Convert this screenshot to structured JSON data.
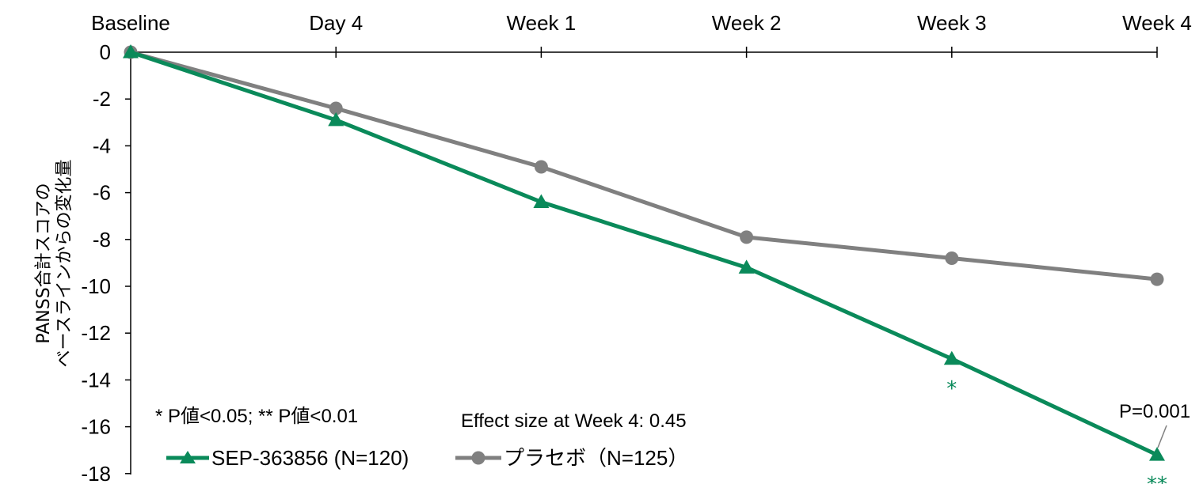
{
  "chart_data": {
    "type": "line",
    "categories": [
      "Baseline",
      "Day 4",
      "Week 1",
      "Week 2",
      "Week 3",
      "Week 4"
    ],
    "ylabel_line1": "PANSS合計スコアの",
    "ylabel_line2": "ベースラインからの変化量",
    "ylim": [
      -18,
      0
    ],
    "yticks": [
      0,
      -2,
      -4,
      -6,
      -8,
      -10,
      -12,
      -14,
      -16,
      -18
    ],
    "series": [
      {
        "name": "SEP-363856 (N=120)",
        "color": "#0a8a5a",
        "marker": "triangle",
        "values": [
          0,
          -2.9,
          -6.4,
          -9.2,
          -13.1,
          -17.2
        ]
      },
      {
        "name": "プラセボ（N=125）",
        "color": "#808080",
        "marker": "circle",
        "values": [
          0,
          -2.4,
          -4.9,
          -7.9,
          -8.8,
          -9.7
        ]
      }
    ],
    "significance": [
      {
        "category": "Week 3",
        "label": "*"
      },
      {
        "category": "Week 4",
        "label": "**"
      }
    ],
    "annotations": {
      "pvalue_legend": "* P値<0.05;  ** P値<0.01",
      "effect_size": "Effect size at Week 4: 0.45",
      "week4_pvalue": "P=0.001"
    },
    "legend_position": "bottom-left",
    "grid": false
  }
}
